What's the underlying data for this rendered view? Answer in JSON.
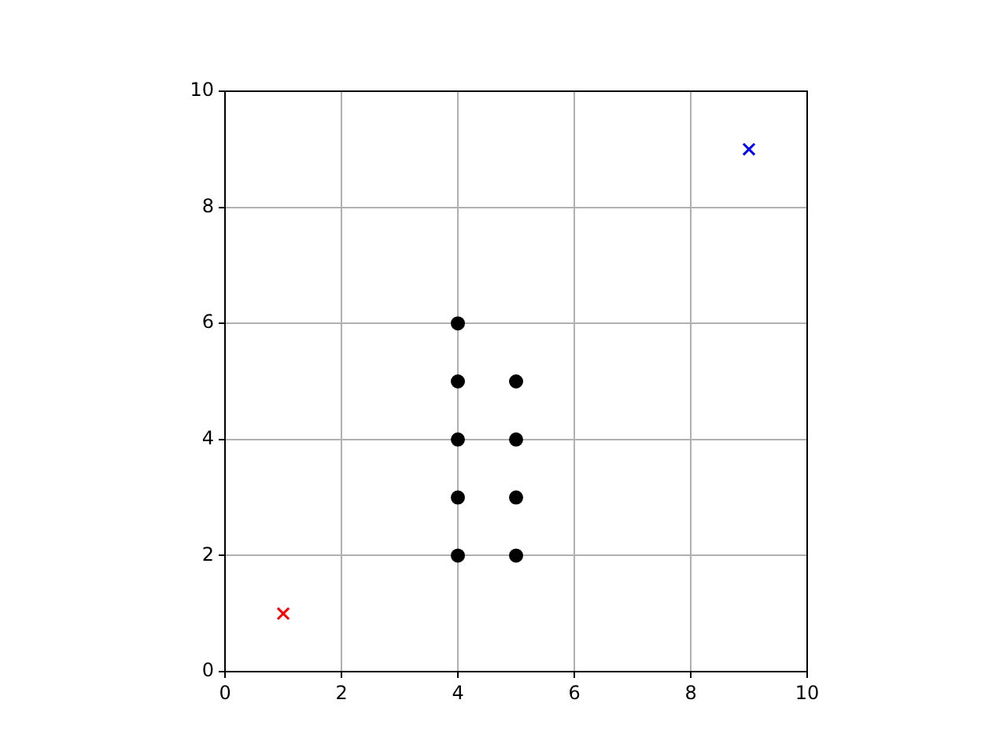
{
  "chart_data": {
    "type": "scatter",
    "xlim": [
      0,
      10
    ],
    "ylim": [
      0,
      10
    ],
    "xticks": [
      0,
      2,
      4,
      6,
      8,
      10
    ],
    "yticks": [
      0,
      2,
      4,
      6,
      8,
      10
    ],
    "grid": true,
    "legend": false,
    "series": [
      {
        "color": "#000000",
        "marker": "circle",
        "x": [
          4,
          4,
          4,
          4,
          4,
          5,
          5,
          5,
          5
        ],
        "values": [
          2,
          3,
          4,
          5,
          6,
          2,
          3,
          4,
          5
        ]
      },
      {
        "color": "#ff0000",
        "marker": "cross",
        "x": [
          1
        ],
        "values": [
          1
        ]
      },
      {
        "color": "#0000ff",
        "marker": "cross",
        "x": [
          9
        ],
        "values": [
          9
        ]
      }
    ]
  }
}
